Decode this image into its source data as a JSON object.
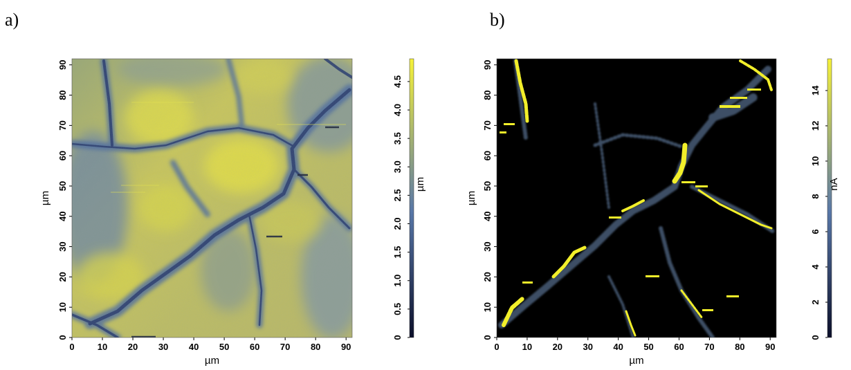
{
  "panels": [
    {
      "label": "a)"
    },
    {
      "label": "b)"
    }
  ],
  "chart_data": [
    {
      "type": "heatmap",
      "title": "",
      "xlabel": "µm",
      "ylabel": "µm",
      "xlim": [
        0,
        92
      ],
      "ylim": [
        0,
        92
      ],
      "xticks": [
        0,
        10,
        20,
        30,
        40,
        50,
        60,
        70,
        80,
        90
      ],
      "yticks": [
        0,
        10,
        20,
        30,
        40,
        50,
        60,
        70,
        80,
        90
      ],
      "colorbar": {
        "label": "µm",
        "range": [
          0,
          4.9
        ],
        "ticks": [
          "0",
          "0.5",
          "1.0",
          "1.5",
          "2.0",
          "2.5",
          "3.0",
          "3.5",
          "4.0",
          "4.5"
        ],
        "tick_values": [
          0,
          0.5,
          1.0,
          1.5,
          2.0,
          2.5,
          3.0,
          3.5,
          4.0,
          4.5
        ],
        "colors": [
          "#0b0f2a",
          "#5877a8",
          "#f6f23a"
        ]
      },
      "grid": false,
      "colors": {
        "low": "#2f4f8f",
        "mid": "#8fa07a",
        "high": "#d6d44e"
      }
    },
    {
      "type": "heatmap",
      "title": "",
      "xlabel": "µm",
      "ylabel": "µm",
      "xlim": [
        0,
        92
      ],
      "ylim": [
        0,
        92
      ],
      "xticks": [
        0,
        10,
        20,
        30,
        40,
        50,
        60,
        70,
        80,
        90
      ],
      "yticks": [
        0,
        10,
        20,
        30,
        40,
        50,
        60,
        70,
        80,
        90
      ],
      "colorbar": {
        "label": "nA",
        "range": [
          0,
          15.8
        ],
        "ticks": [
          "0",
          "2",
          "4",
          "6",
          "8",
          "10",
          "12",
          "14"
        ],
        "tick_values": [
          0,
          2,
          4,
          6,
          8,
          10,
          12,
          14
        ],
        "colors": [
          "#0b0f2a",
          "#5877a8",
          "#f6f23a"
        ]
      },
      "grid": false,
      "colors": {
        "background": "#000000",
        "mid": "#7fa0c8",
        "high": "#f0ee2a"
      }
    }
  ]
}
